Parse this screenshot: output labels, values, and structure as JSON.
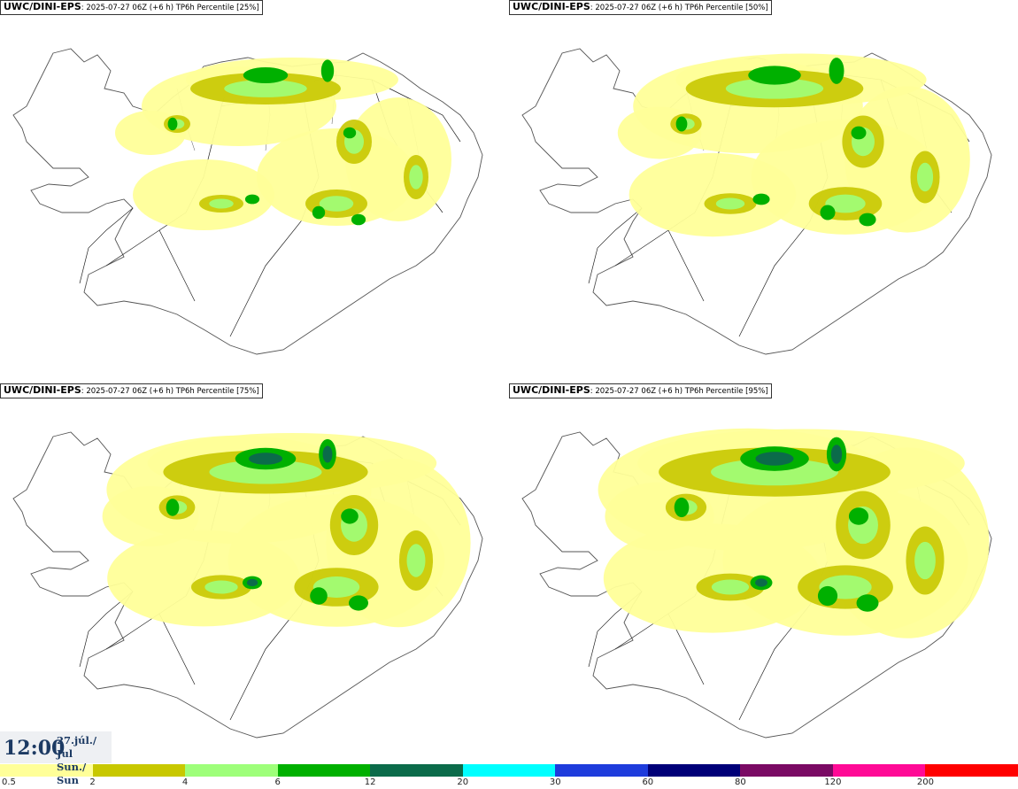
{
  "panels": [
    {
      "model": "UWC/DINI-EPS",
      "meta": ": 2025-07-27 06Z (+6 h) TP6h Percentile [25%]",
      "percentile": 25
    },
    {
      "model": "UWC/DINI-EPS",
      "meta": ": 2025-07-27 06Z (+6 h) TP6h Percentile [50%]",
      "percentile": 50
    },
    {
      "model": "UWC/DINI-EPS",
      "meta": ": 2025-07-27 06Z (+6 h) TP6h Percentile [75%]",
      "percentile": 75
    },
    {
      "model": "UWC/DINI-EPS",
      "meta": ": 2025-07-27 06Z (+6 h) TP6h Percentile [95%]",
      "percentile": 95
    }
  ],
  "time": {
    "clock": "12:00",
    "date_line1": "27.júl./ Jul",
    "date_line2": "Sun./ Sun"
  },
  "legend": {
    "colors": [
      "#ffff99",
      "#c8c800",
      "#9eff7a",
      "#00b000",
      "#0b6b4a",
      "#00ffff",
      "#1e3cdc",
      "#000078",
      "#7a0a64",
      "#ff0a96",
      "#ff0000"
    ],
    "ticks": [
      "0.5",
      "2",
      "4",
      "6",
      "12",
      "20",
      "30",
      "60",
      "80",
      "120",
      "200"
    ]
  },
  "palette": {
    "land_outline": "#555555",
    "roads": "#222222",
    "light": "#ffff99",
    "olive": "#c8c800",
    "lightgreen": "#9eff7a",
    "green": "#00b000",
    "darkgreen": "#0b6b4a"
  }
}
